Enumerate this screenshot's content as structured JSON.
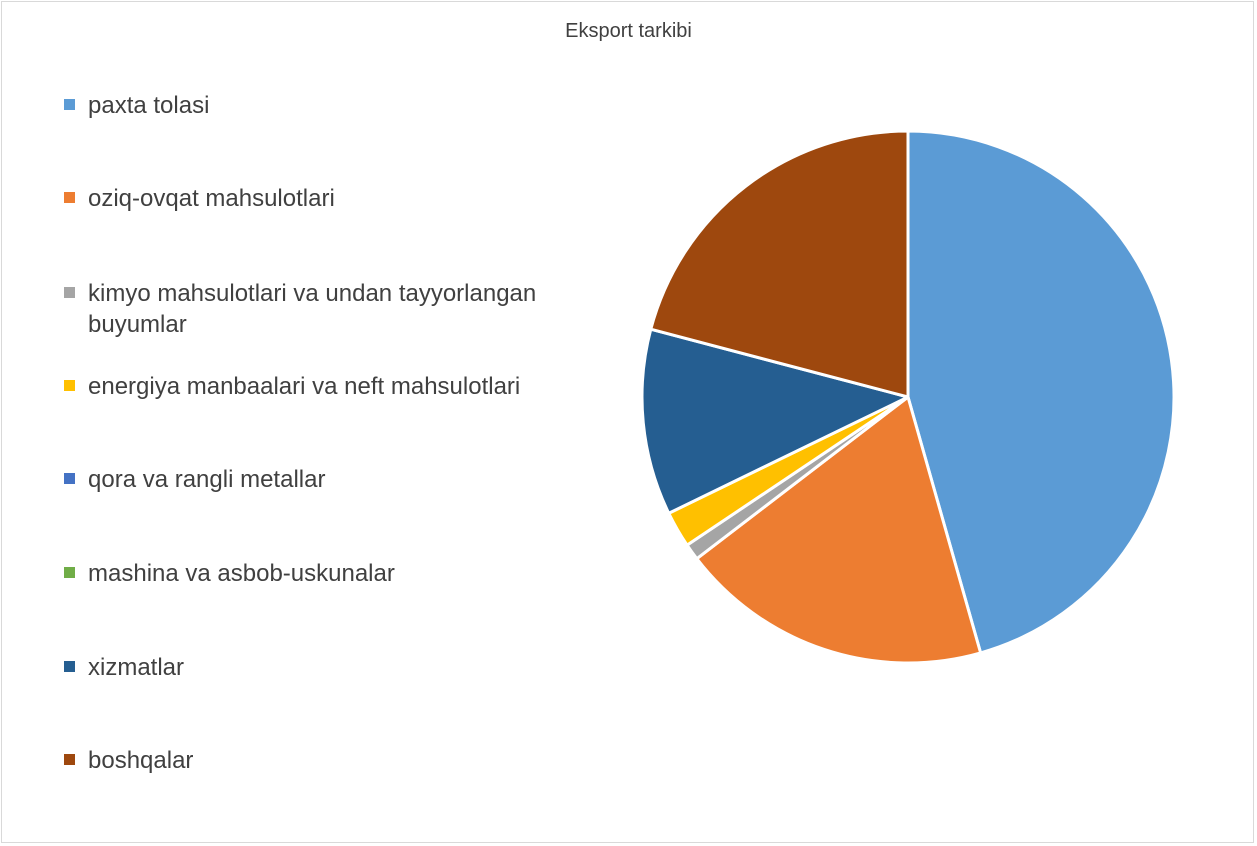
{
  "chart_data": {
    "type": "pie",
    "title": "Eksport tarkibi",
    "legend_position": "left",
    "slices": [
      {
        "label": "paxta tolasi",
        "value": 45.6,
        "color": "#5b9bd5"
      },
      {
        "label": "oziq-ovqat mahsulotlari",
        "value": 19.0,
        "color": "#ed7d31"
      },
      {
        "label": "kimyo mahsulotlari va undan tayyorlangan buyumlar",
        "value": 1.0,
        "color": "#a5a5a5"
      },
      {
        "label": "energiya manbaalari va neft mahsulotlari",
        "value": 2.2,
        "color": "#ffc000"
      },
      {
        "label": "qora va rangli metallar",
        "value": 0.0,
        "color": "#4472c4"
      },
      {
        "label": "mashina va asbob-uskunalar",
        "value": 0.0,
        "color": "#70ad47"
      },
      {
        "label": "xizmatlar",
        "value": 11.3,
        "color": "#255e91"
      },
      {
        "label": "boshqalar",
        "value": 20.9,
        "color": "#9e480e"
      }
    ]
  }
}
